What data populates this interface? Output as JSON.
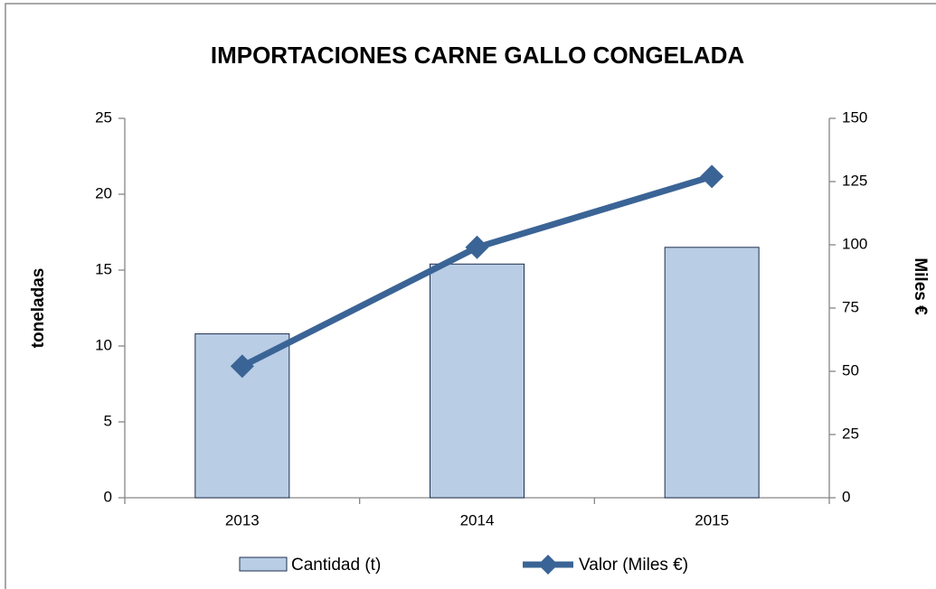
{
  "chart_data": {
    "type": "bar",
    "title": "IMPORTACIONES CARNE GALLO CONGELADA",
    "ylabel": "toneladas",
    "y2label": "Miles €",
    "categories": [
      "2013",
      "2014",
      "2015"
    ],
    "series": [
      {
        "name": "Cantidad (t)",
        "type": "bar",
        "color": "#b9cde5",
        "values": [
          10.8,
          15.4,
          16.5
        ]
      },
      {
        "name": "Valor (Miles €)",
        "type": "line",
        "axis": "y2",
        "color": "#3b6496",
        "values": [
          52,
          99,
          127
        ]
      }
    ],
    "ylim": [
      0,
      25
    ],
    "yticks": [
      0,
      5,
      10,
      15,
      20,
      25
    ],
    "y2lim": [
      0,
      150
    ],
    "y2ticks": [
      0,
      25,
      50,
      75,
      100,
      125,
      150
    ]
  }
}
